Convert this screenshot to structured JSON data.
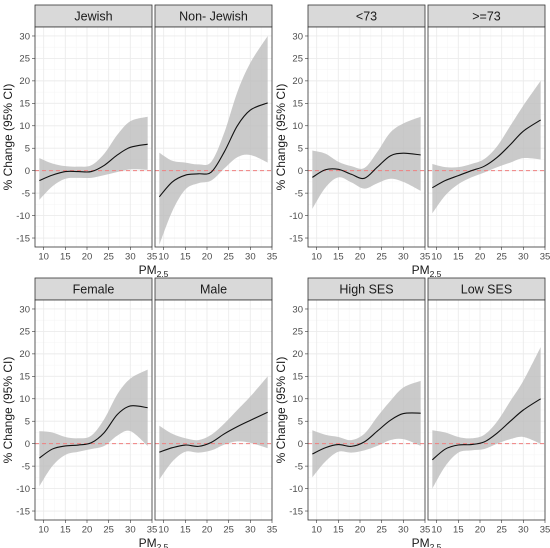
{
  "chart_data": [
    {
      "type": "line",
      "xlabel": "PM",
      "xlabel_subscript": "2.5",
      "ylabel": "% Change (95% CI)",
      "xlim": [
        8,
        35
      ],
      "ylim": [
        -17,
        32
      ],
      "xticks": [
        10,
        15,
        20,
        25,
        30,
        35
      ],
      "yticks": [
        -15,
        -10,
        -5,
        0,
        5,
        10,
        15,
        20,
        25,
        30
      ],
      "reference_line": 0,
      "panels": [
        {
          "strip": "Jewish",
          "x": [
            9,
            12,
            15,
            18,
            21,
            24,
            27,
            30,
            34
          ],
          "y": [
            -2.2,
            -1.0,
            -0.2,
            -0.2,
            -0.2,
            1.2,
            3.5,
            5.2,
            5.9
          ],
          "lower": [
            -6.5,
            -3.5,
            -1.8,
            -1.6,
            -1.6,
            -1.0,
            -0.3,
            0.3,
            0.2
          ],
          "upper": [
            2.8,
            1.6,
            1.0,
            0.9,
            1.2,
            3.8,
            8.0,
            11.0,
            12.0
          ]
        },
        {
          "strip": "Non- Jewish",
          "x": [
            9,
            12,
            15,
            18,
            21,
            24,
            27,
            30,
            34
          ],
          "y": [
            -5.8,
            -2.5,
            -1.0,
            -0.7,
            -0.3,
            4.2,
            10.0,
            13.5,
            15.1
          ],
          "lower": [
            -16.5,
            -9.0,
            -4.2,
            -2.8,
            -2.2,
            0.5,
            3.0,
            3.5,
            1.8
          ],
          "upper": [
            4.0,
            2.2,
            1.8,
            1.4,
            2.0,
            8.5,
            17.5,
            24.0,
            30.0
          ]
        },
        {
          "strip": "<73",
          "x": [
            9,
            12,
            15,
            18,
            21,
            24,
            27,
            30,
            34
          ],
          "y": [
            -1.5,
            0.2,
            0.3,
            -0.8,
            -1.7,
            0.8,
            3.3,
            3.9,
            3.5
          ],
          "lower": [
            -8.5,
            -3.8,
            -1.5,
            -2.6,
            -4.0,
            -2.8,
            -1.8,
            -2.5,
            -4.5
          ],
          "upper": [
            4.5,
            3.8,
            2.0,
            1.0,
            0.6,
            4.2,
            8.5,
            10.5,
            12.0
          ]
        },
        {
          "strip": ">=73",
          "x": [
            9,
            12,
            15,
            18,
            21,
            24,
            27,
            30,
            34
          ],
          "y": [
            -3.8,
            -2.2,
            -1.1,
            0.0,
            1.0,
            3.0,
            5.8,
            8.8,
            11.3
          ],
          "lower": [
            -9.5,
            -5.5,
            -3.0,
            -1.5,
            -0.4,
            0.8,
            1.8,
            2.8,
            2.5
          ],
          "upper": [
            1.5,
            0.8,
            0.8,
            1.5,
            2.6,
            5.5,
            10.0,
            14.5,
            20.0
          ]
        },
        {
          "strip": "Female",
          "x": [
            9,
            12,
            15,
            18,
            21,
            24,
            27,
            30,
            34
          ],
          "y": [
            -3.2,
            -1.2,
            -0.5,
            -0.3,
            0.2,
            2.5,
            6.5,
            8.4,
            8.0
          ],
          "lower": [
            -9.5,
            -5.0,
            -2.5,
            -1.8,
            -1.2,
            -0.5,
            1.8,
            2.8,
            -0.5
          ],
          "upper": [
            2.8,
            2.5,
            1.5,
            1.2,
            1.8,
            5.5,
            11.0,
            14.5,
            16.5
          ]
        },
        {
          "strip": "Male",
          "x": [
            9,
            12,
            15,
            18,
            21,
            24,
            27,
            30,
            34
          ],
          "y": [
            -1.9,
            -0.9,
            -0.3,
            -0.6,
            0.3,
            2.2,
            3.8,
            5.2,
            7.0
          ],
          "lower": [
            -8.0,
            -4.0,
            -1.8,
            -2.0,
            -1.5,
            -0.2,
            0.5,
            0.2,
            -1.0
          ],
          "upper": [
            4.0,
            2.2,
            1.2,
            0.8,
            2.0,
            4.5,
            7.5,
            10.5,
            15.0
          ]
        },
        {
          "strip": "High SES",
          "x": [
            9,
            12,
            15,
            18,
            21,
            24,
            27,
            30,
            34
          ],
          "y": [
            -2.3,
            -0.9,
            -0.2,
            -0.6,
            0.4,
            2.8,
            5.2,
            6.7,
            6.8
          ],
          "lower": [
            -7.5,
            -4.0,
            -1.8,
            -2.0,
            -1.5,
            -0.5,
            0.8,
            1.0,
            -0.5
          ],
          "upper": [
            3.0,
            2.0,
            1.5,
            0.8,
            2.2,
            6.0,
            9.5,
            12.5,
            14.0
          ]
        },
        {
          "strip": "Low SES",
          "x": [
            9,
            12,
            15,
            18,
            21,
            24,
            27,
            30,
            34
          ],
          "y": [
            -3.6,
            -1.2,
            -0.3,
            -0.2,
            0.4,
            2.4,
            5.0,
            7.5,
            10.0
          ],
          "lower": [
            -10.0,
            -5.0,
            -2.0,
            -1.5,
            -1.2,
            0.0,
            1.0,
            1.5,
            0.0
          ],
          "upper": [
            3.0,
            2.5,
            1.5,
            1.2,
            2.0,
            5.0,
            9.5,
            14.0,
            21.5
          ]
        }
      ]
    }
  ]
}
